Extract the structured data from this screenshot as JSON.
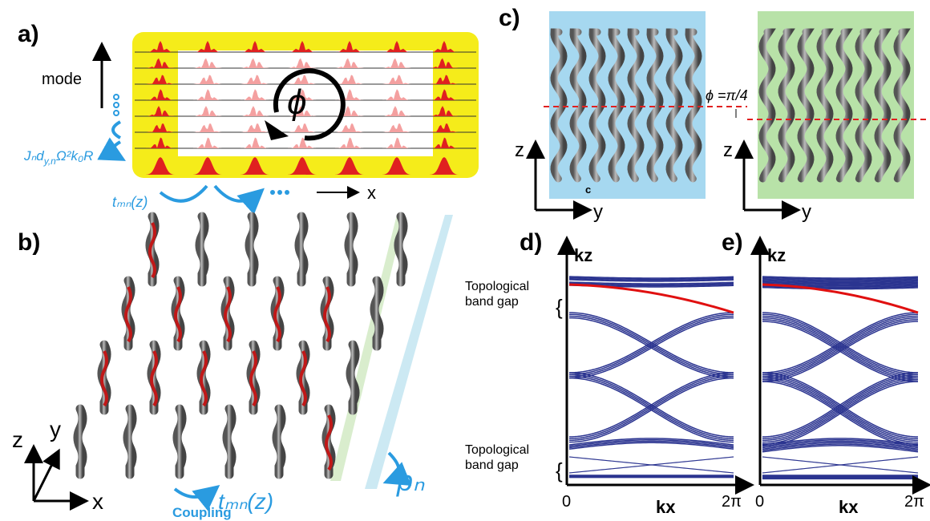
{
  "panel_a": {
    "label": "a)",
    "mode": "mode",
    "x_axis": "x",
    "phi": "ϕ",
    "formula": {
      "j": "Jₙd",
      "sub": "y,n",
      "rest": "Ω²k₀R"
    },
    "coupling": "tₘₙ(z)"
  },
  "panel_b": {
    "label": "b)",
    "z": "z",
    "y": "y",
    "x": "x",
    "coupling_label": "Coupling",
    "coupling": "tₘₙ(z)",
    "p": "pₙ"
  },
  "panel_c": {
    "label": "c)",
    "phi": "ϕ =π/4",
    "c": "c",
    "left_axes": {
      "z": "z",
      "y": "y"
    },
    "right_axes": {
      "z": "z",
      "y": "y"
    }
  },
  "panel_d": {
    "label": "d)",
    "kz": "kz",
    "gap_top": [
      "Topological",
      "band gap"
    ],
    "gap_bottom": [
      "Topological",
      "band gap"
    ],
    "x_start": "0",
    "kx": "kx",
    "x_end": "2π"
  },
  "panel_e": {
    "label": "e)",
    "kz": "kz",
    "x_start": "0",
    "kx": "kx",
    "x_end": "2π"
  }
}
